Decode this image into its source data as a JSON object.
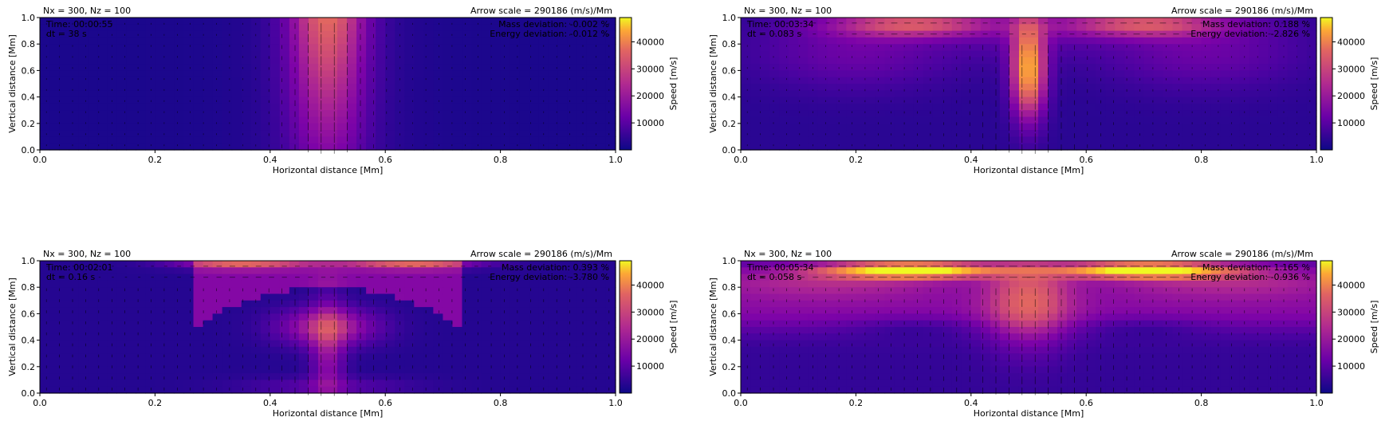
{
  "chart_data": [
    {
      "type": "heatmap",
      "grid_label": "Nx = 300, Nz = 100",
      "arrow_scale": "Arrow scale = 290186 (m/s)/Mm",
      "time": "Time: 00:00:55",
      "dt": "dt = 38 s",
      "mass_deviation": "Mass deviation: -0.002 %",
      "energy_deviation": "Energy deviation: -0.012 %",
      "xlabel": "Horizontal distance [Mm]",
      "ylabel": "Vertical distance [Mm]",
      "xlim": [
        0,
        1
      ],
      "ylim": [
        0,
        1
      ],
      "xticks": [
        "0.0",
        "0.2",
        "0.4",
        "0.6",
        "0.8",
        "1.0"
      ],
      "yticks": [
        "0.0",
        "0.2",
        "0.4",
        "0.6",
        "0.8",
        "1.0"
      ],
      "colorbar_label": "Speed [m/s]",
      "colorbar_ticks": [
        "10000",
        "20000",
        "30000",
        "40000"
      ],
      "colormap": "plasma",
      "speed_range": [
        0,
        49000
      ]
    },
    {
      "type": "heatmap",
      "grid_label": "Nx = 300, Nz = 100",
      "arrow_scale": "Arrow scale = 290186 (m/s)/Mm",
      "time": "Time: 00:03:34",
      "dt": "dt = 0.083 s",
      "mass_deviation": "Mass deviation: 0.188 %",
      "energy_deviation": "Energy deviation: -2.826 %",
      "xlabel": "Horizontal distance [Mm]",
      "ylabel": "Vertical distance [Mm]",
      "xlim": [
        0,
        1
      ],
      "ylim": [
        0,
        1
      ],
      "xticks": [
        "0.0",
        "0.2",
        "0.4",
        "0.6",
        "0.8",
        "1.0"
      ],
      "yticks": [
        "0.0",
        "0.2",
        "0.4",
        "0.6",
        "0.8",
        "1.0"
      ],
      "colorbar_label": "Speed [m/s]",
      "colorbar_ticks": [
        "10000",
        "20000",
        "30000",
        "40000"
      ],
      "colormap": "plasma",
      "speed_range": [
        0,
        49000
      ]
    },
    {
      "type": "heatmap",
      "grid_label": "Nx = 300, Nz = 100",
      "arrow_scale": "Arrow scale = 290186 (m/s)/Mm",
      "time": "Time: 00:02:01",
      "dt": "dt = 0.16 s",
      "mass_deviation": "Mass deviation: 0.393 %",
      "energy_deviation": "Energy deviation: -3.780 %",
      "xlabel": "Horizontal distance [Mm]",
      "ylabel": "Vertical distance [Mm]",
      "xlim": [
        0,
        1
      ],
      "ylim": [
        0,
        1
      ],
      "xticks": [
        "0.0",
        "0.2",
        "0.4",
        "0.6",
        "0.8",
        "1.0"
      ],
      "yticks": [
        "0.0",
        "0.2",
        "0.4",
        "0.6",
        "0.8",
        "1.0"
      ],
      "colorbar_label": "Speed [m/s]",
      "colorbar_ticks": [
        "10000",
        "20000",
        "30000",
        "40000"
      ],
      "colormap": "plasma",
      "speed_range": [
        0,
        49000
      ]
    },
    {
      "type": "heatmap",
      "grid_label": "Nx = 300, Nz = 100",
      "arrow_scale": "Arrow scale = 290186 (m/s)/Mm",
      "time": "Time: 00:05:34",
      "dt": "dt = 0.058 s",
      "mass_deviation": "Mass deviation: 1.165 %",
      "energy_deviation": "Energy deviation: -0.936 %",
      "xlabel": "Horizontal distance [Mm]",
      "ylabel": "Vertical distance [Mm]",
      "xlim": [
        0,
        1
      ],
      "ylim": [
        0,
        1
      ],
      "xticks": [
        "0.0",
        "0.2",
        "0.4",
        "0.6",
        "0.8",
        "1.0"
      ],
      "yticks": [
        "0.0",
        "0.2",
        "0.4",
        "0.6",
        "0.8",
        "1.0"
      ],
      "colorbar_label": "Speed [m/s]",
      "colorbar_ticks": [
        "10000",
        "20000",
        "30000",
        "40000"
      ],
      "colormap": "plasma",
      "speed_range": [
        0,
        49000
      ]
    }
  ]
}
